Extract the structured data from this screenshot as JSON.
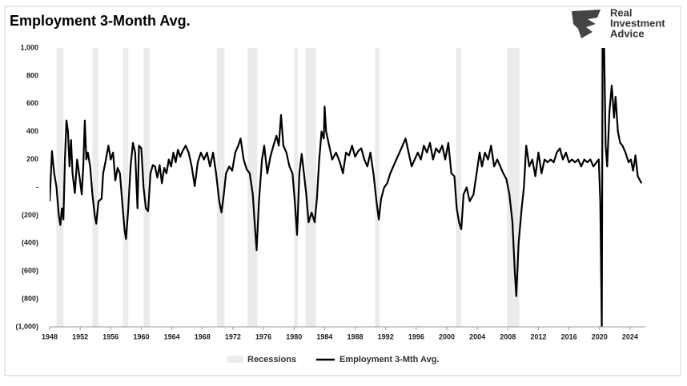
{
  "chart_data": {
    "type": "line",
    "title": "Employment 3-Month Avg.",
    "logo": [
      "Real",
      "Investment",
      "Advice"
    ],
    "grid": false,
    "xlim": [
      1948,
      2026
    ],
    "xticks": [
      1948,
      1952,
      1956,
      1960,
      1964,
      1968,
      1972,
      1976,
      1980,
      1984,
      1988,
      1992,
      1996,
      2000,
      2004,
      2008,
      2012,
      2016,
      2020,
      2024
    ],
    "ylim": [
      -1000,
      1000
    ],
    "yticks": [
      {
        "value": 1000,
        "label": "1,000"
      },
      800,
      600,
      400,
      200,
      {
        "value": 0,
        "label": "-"
      },
      {
        "value": -200,
        "label": "(200)"
      },
      {
        "value": -400,
        "label": "(400)"
      },
      {
        "value": -600,
        "label": "(600)"
      },
      {
        "value": -800,
        "label": "(800)"
      },
      {
        "value": -1000,
        "label": "(1,000)"
      }
    ],
    "recessions": {
      "name": "Recessions",
      "color": "#ebebeb",
      "periods": [
        [
          1948.9,
          1949.8
        ],
        [
          1953.6,
          1954.4
        ],
        [
          1957.6,
          1958.3
        ],
        [
          1960.3,
          1961.1
        ],
        [
          1969.9,
          1970.9
        ],
        [
          1973.9,
          1975.2
        ],
        [
          1980.0,
          1980.5
        ],
        [
          1981.5,
          1982.9
        ],
        [
          1990.6,
          1991.2
        ],
        [
          2001.2,
          2001.9
        ],
        [
          2007.9,
          2009.5
        ],
        [
          2020.1,
          2020.3
        ]
      ]
    },
    "x": [
      1948.0,
      1948.3,
      1948.6,
      1948.9,
      1949.2,
      1949.4,
      1949.6,
      1949.8,
      1950.0,
      1950.2,
      1950.4,
      1950.6,
      1950.8,
      1951.0,
      1951.3,
      1951.6,
      1951.9,
      1952.2,
      1952.4,
      1952.6,
      1952.8,
      1953.0,
      1953.3,
      1953.6,
      1953.9,
      1954.1,
      1954.4,
      1954.8,
      1955.0,
      1955.3,
      1955.7,
      1956.0,
      1956.3,
      1956.6,
      1956.9,
      1957.2,
      1957.5,
      1957.8,
      1958.0,
      1958.3,
      1958.6,
      1958.9,
      1959.2,
      1959.5,
      1959.7,
      1960.0,
      1960.3,
      1960.6,
      1960.9,
      1961.2,
      1961.5,
      1961.8,
      1962.1,
      1962.4,
      1962.7,
      1963.0,
      1963.3,
      1963.6,
      1963.9,
      1964.2,
      1964.5,
      1964.8,
      1965.1,
      1965.4,
      1965.8,
      1966.2,
      1966.6,
      1967.0,
      1967.4,
      1967.8,
      1968.2,
      1968.6,
      1969.0,
      1969.4,
      1969.8,
      1970.2,
      1970.5,
      1970.8,
      1971.1,
      1971.5,
      1971.9,
      1972.3,
      1972.7,
      1973.0,
      1973.4,
      1973.8,
      1974.2,
      1974.6,
      1974.9,
      1975.1,
      1975.4,
      1975.8,
      1976.1,
      1976.5,
      1976.9,
      1977.3,
      1977.7,
      1978.0,
      1978.3,
      1978.6,
      1979.0,
      1979.4,
      1979.8,
      1980.1,
      1980.4,
      1980.7,
      1981.0,
      1981.3,
      1981.6,
      1981.9,
      1982.3,
      1982.7,
      1983.0,
      1983.3,
      1983.6,
      1983.9,
      1984.0,
      1984.2,
      1984.6,
      1985.0,
      1985.5,
      1986.0,
      1986.4,
      1986.8,
      1987.2,
      1987.6,
      1988.0,
      1988.4,
      1988.8,
      1989.2,
      1989.6,
      1990.0,
      1990.4,
      1990.8,
      1991.1,
      1991.4,
      1991.8,
      1992.2,
      1992.6,
      1993.0,
      1993.4,
      1993.8,
      1994.2,
      1994.6,
      1995.0,
      1995.4,
      1995.8,
      1996.2,
      1996.6,
      1997.0,
      1997.4,
      1997.8,
      1998.2,
      1998.6,
      1999.0,
      1999.4,
      1999.8,
      2000.2,
      2000.6,
      2001.0,
      2001.3,
      2001.6,
      2001.9,
      2002.2,
      2002.6,
      2003.0,
      2003.5,
      2003.9,
      2004.3,
      2004.6,
      2005.0,
      2005.4,
      2005.8,
      2006.2,
      2006.6,
      2007.0,
      2007.4,
      2007.8,
      2008.2,
      2008.6,
      2008.9,
      2009.1,
      2009.4,
      2009.8,
      2010.1,
      2010.4,
      2010.8,
      2011.2,
      2011.6,
      2012.0,
      2012.4,
      2012.8,
      2013.2,
      2013.6,
      2014.0,
      2014.4,
      2014.8,
      2015.2,
      2015.6,
      2016.0,
      2016.4,
      2016.8,
      2017.2,
      2017.6,
      2018.0,
      2018.4,
      2018.8,
      2019.2,
      2019.6,
      2019.9,
      2020.1,
      2020.3,
      2020.4,
      2020.6,
      2020.8,
      2021.0,
      2021.3,
      2021.6,
      2021.9,
      2022.1,
      2022.4,
      2022.7,
      2023.0,
      2023.4,
      2023.8,
      2024.1,
      2024.4,
      2024.7,
      2025.0,
      2025.3,
      2025.5
    ],
    "series": [
      {
        "name": "Employment 3-Mth Avg.",
        "color": "#000000",
        "values": [
          -100,
          260,
          100,
          0,
          -200,
          -270,
          -150,
          -230,
          200,
          480,
          400,
          150,
          340,
          100,
          -40,
          200,
          80,
          -50,
          150,
          480,
          200,
          250,
          150,
          -50,
          -200,
          -260,
          -100,
          -80,
          100,
          180,
          300,
          200,
          250,
          50,
          140,
          100,
          -100,
          -300,
          -370,
          -150,
          150,
          320,
          250,
          -150,
          300,
          280,
          0,
          -150,
          -170,
          100,
          160,
          150,
          70,
          160,
          30,
          140,
          100,
          200,
          150,
          250,
          180,
          270,
          220,
          260,
          300,
          250,
          150,
          10,
          180,
          250,
          200,
          250,
          150,
          250,
          100,
          -100,
          -180,
          -50,
          100,
          150,
          120,
          250,
          300,
          350,
          200,
          130,
          100,
          -50,
          -300,
          -450,
          -100,
          200,
          300,
          100,
          220,
          300,
          370,
          300,
          520,
          300,
          250,
          150,
          100,
          -100,
          -340,
          100,
          240,
          100,
          -50,
          -250,
          -180,
          -250,
          -80,
          200,
          400,
          350,
          580,
          400,
          300,
          200,
          250,
          180,
          100,
          250,
          230,
          300,
          220,
          260,
          280,
          200,
          150,
          250,
          100,
          -100,
          -230,
          -80,
          0,
          30,
          100,
          150,
          200,
          250,
          300,
          350,
          250,
          150,
          200,
          250,
          200,
          300,
          250,
          320,
          200,
          280,
          250,
          300,
          200,
          320,
          100,
          80,
          -150,
          -250,
          -300,
          -50,
          0,
          -100,
          -50,
          100,
          250,
          150,
          250,
          200,
          300,
          150,
          200,
          150,
          100,
          60,
          -50,
          -250,
          -600,
          -780,
          -400,
          -150,
          0,
          300,
          150,
          200,
          80,
          250,
          100,
          200,
          180,
          200,
          180,
          250,
          280,
          200,
          250,
          180,
          200,
          180,
          200,
          150,
          200,
          180,
          200,
          150,
          180,
          200,
          -100,
          -1000,
          1000,
          1000,
          300,
          150,
          550,
          730,
          500,
          650,
          400,
          320,
          300,
          250,
          180,
          200,
          120,
          230,
          80,
          50,
          30
        ]
      }
    ]
  }
}
